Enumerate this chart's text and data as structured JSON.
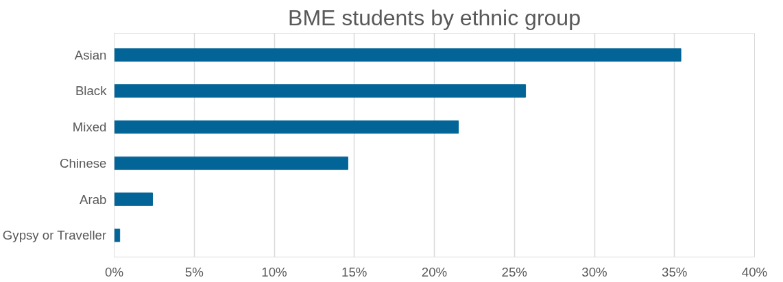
{
  "chart_data": {
    "type": "bar",
    "orientation": "horizontal",
    "title": "BME students by ethnic group",
    "categories": [
      "Asian",
      "Black",
      "Mixed",
      "Chinese",
      "Arab",
      "Gypsy or Traveller"
    ],
    "values": [
      35.4,
      25.7,
      21.5,
      14.6,
      2.4,
      0.35
    ],
    "color": "#036597",
    "xlim": [
      0,
      40
    ],
    "xticks": [
      {
        "value": 0,
        "label": "0%"
      },
      {
        "value": 5,
        "label": "5%"
      },
      {
        "value": 10,
        "label": "10%"
      },
      {
        "value": 15,
        "label": "15%"
      },
      {
        "value": 20,
        "label": "20%"
      },
      {
        "value": 25,
        "label": "25%"
      },
      {
        "value": 30,
        "label": "30%"
      },
      {
        "value": 35,
        "label": "35%"
      },
      {
        "value": 40,
        "label": "40%"
      }
    ],
    "grid": "x"
  }
}
